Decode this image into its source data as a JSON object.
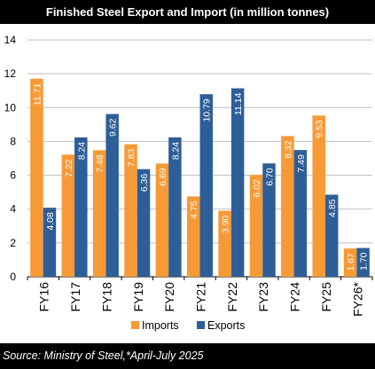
{
  "header": {
    "title": "Finished Steel Export and Import (in million tonnes)"
  },
  "footer": {
    "source": "Source: Ministry of Steel,*April-July 2025"
  },
  "colors": {
    "imports": "#F79A36",
    "exports": "#2E5E98",
    "grid": "#BFBFBF",
    "axis": "#000000"
  },
  "chart_data": {
    "type": "bar",
    "title": "Finished Steel Export and Import (in million tonnes)",
    "categories": [
      "FY16",
      "FY17",
      "FY18",
      "FY19",
      "FY20",
      "FY21",
      "FY22",
      "FY23",
      "FY24",
      "FY25",
      "FY26*"
    ],
    "series": [
      {
        "name": "Imports",
        "values": [
          11.71,
          7.22,
          7.48,
          7.83,
          6.69,
          4.75,
          3.9,
          6.02,
          8.32,
          9.53,
          1.67
        ],
        "labels": [
          "11.71",
          "7.22",
          "7.48",
          "7.83",
          "6.69",
          "4.75",
          "3.90",
          "6.02",
          "8.32",
          "9.53",
          "1.67"
        ]
      },
      {
        "name": "Exports",
        "values": [
          4.08,
          8.24,
          9.62,
          6.36,
          8.24,
          10.79,
          11.14,
          6.7,
          7.49,
          4.85,
          1.7
        ],
        "labels": [
          "4.08",
          "8.24",
          "9.62",
          "6.36",
          "8.24",
          "10.79",
          "11.14",
          "6.70",
          "7.49",
          "4.85",
          "1.70"
        ]
      }
    ],
    "ylim": [
      0,
      14
    ],
    "yticks": [
      "0",
      "2",
      "4",
      "6",
      "8",
      "10",
      "12",
      "14"
    ],
    "grid": true,
    "legend": "bottom-center",
    "xlabel": "",
    "ylabel": ""
  }
}
